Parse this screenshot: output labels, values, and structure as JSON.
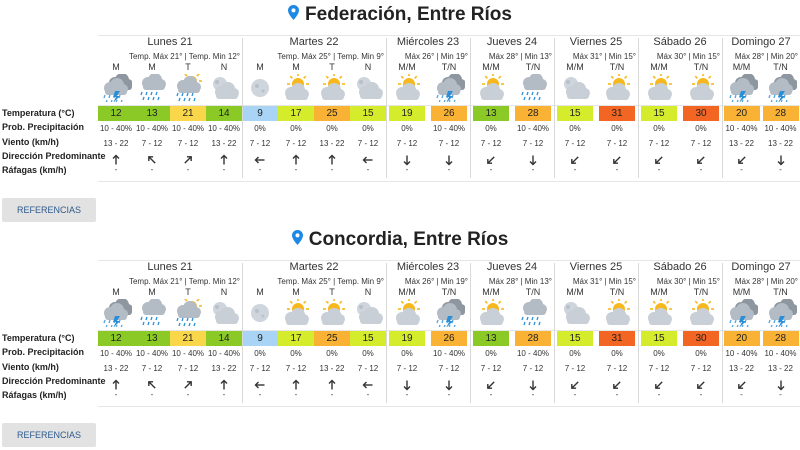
{
  "colors": {
    "pin": "#1e88e5",
    "button_bg": "#e2e2e2",
    "button_text": "#2d5a8c"
  },
  "row_labels": [
    "Temperatura (°C)",
    "Prob. Precipitación",
    "Viento (km/h)",
    "Dirección Predominante",
    "Ráfagas (km/h)"
  ],
  "reference_label": "REFERENCIAS",
  "sections": [
    {
      "title": "Federación, Entre Ríos",
      "days": [
        {
          "name": "Lunes 21",
          "minmax": "Temp. Máx 21° | Temp. Min 12°",
          "periods": [
            {
              "label": "M",
              "icon": "cloudy-storm-icon",
              "temp": "12",
              "color": "#8ac926",
              "prob": "10 - 40%",
              "wind": "13 - 22",
              "dir": "↑",
              "gust": "-"
            },
            {
              "label": "M",
              "icon": "rain-icon",
              "temp": "13",
              "color": "#8ac926",
              "prob": "10 - 40%",
              "wind": "7 - 12",
              "dir": "↖",
              "gust": "-"
            },
            {
              "label": "T",
              "icon": "sun-cloud-rain-icon",
              "temp": "21",
              "color": "#f9d64a",
              "prob": "10 - 40%",
              "wind": "7 - 12",
              "dir": "↗",
              "gust": "-"
            },
            {
              "label": "N",
              "icon": "moon-cloud-icon",
              "temp": "14",
              "color": "#8ac926",
              "prob": "10 - 40%",
              "wind": "13 - 22",
              "dir": "↑",
              "gust": "-"
            }
          ]
        },
        {
          "name": "Martes 22",
          "minmax": "Temp. Máx 25° | Temp. Min 9°",
          "periods": [
            {
              "label": "M",
              "icon": "moon-icon",
              "temp": "9",
              "color": "#a9d4f5",
              "prob": "0%",
              "wind": "7 - 12",
              "dir": "←",
              "gust": "-"
            },
            {
              "label": "M",
              "icon": "sun-cloud-icon",
              "temp": "17",
              "color": "#d4ec2b",
              "prob": "0%",
              "wind": "7 - 12",
              "dir": "↑",
              "gust": "-"
            },
            {
              "label": "T",
              "icon": "sun-cloud-icon",
              "temp": "25",
              "color": "#f9b233",
              "prob": "0%",
              "wind": "13 - 22",
              "dir": "↑",
              "gust": "-"
            },
            {
              "label": "N",
              "icon": "moon-cloud-icon",
              "temp": "15",
              "color": "#d4ec2b",
              "prob": "0%",
              "wind": "7 - 12",
              "dir": "←",
              "gust": "-"
            }
          ]
        },
        {
          "name": "Miércoles 23",
          "minmax": "Máx 26° | Min 19°",
          "periods": [
            {
              "label": "M/M",
              "icon": "sun-cloud-icon",
              "temp": "19",
              "color": "#d4ec2b",
              "prob": "0%",
              "wind": "7 - 12",
              "dir": "↓",
              "gust": "-"
            },
            {
              "label": "T/N",
              "icon": "cloudy-storm-icon",
              "temp": "26",
              "color": "#f9b233",
              "prob": "10 - 40%",
              "wind": "7 - 12",
              "dir": "↓",
              "gust": "-"
            }
          ]
        },
        {
          "name": "Jueves 24",
          "minmax": "Máx 28° | Min 13°",
          "periods": [
            {
              "label": "M/M",
              "icon": "sun-cloud-icon",
              "temp": "13",
              "color": "#8ac926",
              "prob": "0%",
              "wind": "7 - 12",
              "dir": "↙",
              "gust": "-"
            },
            {
              "label": "T/N",
              "icon": "rain-icon",
              "temp": "28",
              "color": "#f9b233",
              "prob": "10 - 40%",
              "wind": "7 - 12",
              "dir": "↓",
              "gust": "-"
            }
          ]
        },
        {
          "name": "Viernes 25",
          "minmax": "Máx 31° | Min 15°",
          "periods": [
            {
              "label": "M/M",
              "icon": "moon-cloud-icon",
              "temp": "15",
              "color": "#d4ec2b",
              "prob": "0%",
              "wind": "7 - 12",
              "dir": "↙",
              "gust": "-"
            },
            {
              "label": "T/N",
              "icon": "sun-cloud-icon",
              "temp": "31",
              "color": "#f26522",
              "prob": "0%",
              "wind": "7 - 12",
              "dir": "↙",
              "gust": "-"
            }
          ]
        },
        {
          "name": "Sábado 26",
          "minmax": "Máx 30° | Min 15°",
          "periods": [
            {
              "label": "M/M",
              "icon": "sun-cloud-icon",
              "temp": "15",
              "color": "#d4ec2b",
              "prob": "0%",
              "wind": "7 - 12",
              "dir": "↙",
              "gust": "-"
            },
            {
              "label": "T/N",
              "icon": "sun-cloud-icon",
              "temp": "30",
              "color": "#f26522",
              "prob": "0%",
              "wind": "7 - 12",
              "dir": "↙",
              "gust": "-"
            }
          ]
        },
        {
          "name": "Domingo 27",
          "minmax": "Máx 28° | Min 20°",
          "periods": [
            {
              "label": "M/M",
              "icon": "cloudy-storm-icon",
              "temp": "20",
              "color": "#f9b233",
              "prob": "10 - 40%",
              "wind": "13 - 22",
              "dir": "↙",
              "gust": "-"
            },
            {
              "label": "T/N",
              "icon": "cloudy-storm-icon",
              "temp": "28",
              "color": "#f9b233",
              "prob": "10 - 40%",
              "wind": "13 - 22",
              "dir": "↓",
              "gust": "-"
            }
          ]
        }
      ]
    },
    {
      "title": "Concordia, Entre Ríos",
      "days": [
        {
          "name": "Lunes 21",
          "minmax": "Temp. Máx 21° | Temp. Min 12°",
          "periods": [
            {
              "label": "M",
              "icon": "cloudy-storm-icon",
              "temp": "12",
              "color": "#8ac926",
              "prob": "10 - 40%",
              "wind": "13 - 22",
              "dir": "↑",
              "gust": "-"
            },
            {
              "label": "M",
              "icon": "rain-icon",
              "temp": "13",
              "color": "#8ac926",
              "prob": "10 - 40%",
              "wind": "7 - 12",
              "dir": "↖",
              "gust": "-"
            },
            {
              "label": "T",
              "icon": "sun-cloud-rain-icon",
              "temp": "21",
              "color": "#f9d64a",
              "prob": "10 - 40%",
              "wind": "7 - 12",
              "dir": "↗",
              "gust": "-"
            },
            {
              "label": "N",
              "icon": "moon-cloud-icon",
              "temp": "14",
              "color": "#8ac926",
              "prob": "10 - 40%",
              "wind": "13 - 22",
              "dir": "↑",
              "gust": "-"
            }
          ]
        },
        {
          "name": "Martes 22",
          "minmax": "Temp. Máx 25° | Temp. Min 9°",
          "periods": [
            {
              "label": "M",
              "icon": "moon-icon",
              "temp": "9",
              "color": "#a9d4f5",
              "prob": "0%",
              "wind": "7 - 12",
              "dir": "←",
              "gust": "-"
            },
            {
              "label": "M",
              "icon": "sun-cloud-icon",
              "temp": "17",
              "color": "#d4ec2b",
              "prob": "0%",
              "wind": "7 - 12",
              "dir": "↑",
              "gust": "-"
            },
            {
              "label": "T",
              "icon": "sun-cloud-icon",
              "temp": "25",
              "color": "#f9b233",
              "prob": "0%",
              "wind": "13 - 22",
              "dir": "↑",
              "gust": "-"
            },
            {
              "label": "N",
              "icon": "moon-cloud-icon",
              "temp": "15",
              "color": "#d4ec2b",
              "prob": "0%",
              "wind": "7 - 12",
              "dir": "←",
              "gust": "-"
            }
          ]
        },
        {
          "name": "Miércoles 23",
          "minmax": "Máx 26° | Min 19°",
          "periods": [
            {
              "label": "M/M",
              "icon": "sun-cloud-icon",
              "temp": "19",
              "color": "#d4ec2b",
              "prob": "0%",
              "wind": "7 - 12",
              "dir": "↓",
              "gust": "-"
            },
            {
              "label": "T/N",
              "icon": "cloudy-storm-icon",
              "temp": "26",
              "color": "#f9b233",
              "prob": "10 - 40%",
              "wind": "7 - 12",
              "dir": "↓",
              "gust": "-"
            }
          ]
        },
        {
          "name": "Jueves 24",
          "minmax": "Máx 28° | Min 13°",
          "periods": [
            {
              "label": "M/M",
              "icon": "sun-cloud-icon",
              "temp": "13",
              "color": "#8ac926",
              "prob": "0%",
              "wind": "7 - 12",
              "dir": "↙",
              "gust": "-"
            },
            {
              "label": "T/N",
              "icon": "rain-icon",
              "temp": "28",
              "color": "#f9b233",
              "prob": "10 - 40%",
              "wind": "7 - 12",
              "dir": "↓",
              "gust": "-"
            }
          ]
        },
        {
          "name": "Viernes 25",
          "minmax": "Máx 31° | Min 15°",
          "periods": [
            {
              "label": "M/M",
              "icon": "moon-cloud-icon",
              "temp": "15",
              "color": "#d4ec2b",
              "prob": "0%",
              "wind": "7 - 12",
              "dir": "↙",
              "gust": "-"
            },
            {
              "label": "T/N",
              "icon": "sun-cloud-icon",
              "temp": "31",
              "color": "#f26522",
              "prob": "0%",
              "wind": "7 - 12",
              "dir": "↙",
              "gust": "-"
            }
          ]
        },
        {
          "name": "Sábado 26",
          "minmax": "Máx 30° | Min 15°",
          "periods": [
            {
              "label": "M/M",
              "icon": "sun-cloud-icon",
              "temp": "15",
              "color": "#d4ec2b",
              "prob": "0%",
              "wind": "7 - 12",
              "dir": "↙",
              "gust": "-"
            },
            {
              "label": "T/N",
              "icon": "sun-cloud-icon",
              "temp": "30",
              "color": "#f26522",
              "prob": "0%",
              "wind": "7 - 12",
              "dir": "↙",
              "gust": "-"
            }
          ]
        },
        {
          "name": "Domingo 27",
          "minmax": "Máx 28° | Min 20°",
          "periods": [
            {
              "label": "M/M",
              "icon": "cloudy-storm-icon",
              "temp": "20",
              "color": "#f9b233",
              "prob": "10 - 40%",
              "wind": "13 - 22",
              "dir": "↙",
              "gust": "-"
            },
            {
              "label": "T/N",
              "icon": "cloudy-storm-icon",
              "temp": "28",
              "color": "#f9b233",
              "prob": "10 - 40%",
              "wind": "13 - 22",
              "dir": "↓",
              "gust": "-"
            }
          ]
        }
      ]
    }
  ]
}
